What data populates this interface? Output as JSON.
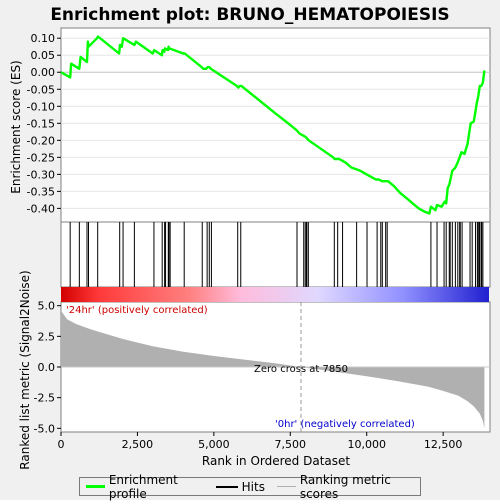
{
  "chart_data": {
    "type": "line",
    "title": "Enrichment plot: BRUNO_HEMATOPOIESIS",
    "top_panel": {
      "ylabel": "Enrichment score (ES)",
      "ylim": [
        -0.44,
        0.13
      ],
      "yticks": [
        0.1,
        0.05,
        0.0,
        -0.05,
        -0.1,
        -0.15,
        -0.2,
        -0.25,
        -0.3,
        -0.35,
        -0.4
      ],
      "ytick_labels": [
        "0.10",
        "0.05",
        "0.00",
        "-0.05",
        "-0.10",
        "-0.15",
        "-0.20",
        "-0.25",
        "-0.30",
        "-0.35",
        "-0.40"
      ],
      "series": [
        {
          "name": "Enrichment profile",
          "color": "#00ff00",
          "x": [
            0,
            300,
            330,
            600,
            640,
            850,
            880,
            900,
            1180,
            1210,
            1900,
            1930,
            1990,
            2030,
            2400,
            2450,
            3000,
            3050,
            3300,
            3320,
            3380,
            3400,
            3500,
            3520,
            3540,
            4000,
            4050,
            4600,
            4650,
            4750,
            4800,
            4850,
            4900,
            5750,
            5800,
            5850,
            5900,
            7000,
            7500,
            7700,
            7800,
            7900,
            8000,
            8050,
            8100,
            8500,
            8900,
            8950,
            9050,
            9100,
            9200,
            9300,
            9500,
            9800,
            10000,
            10200,
            10300,
            10400,
            10500,
            10600,
            10700,
            10900,
            11100,
            11300,
            11500,
            11700,
            11900,
            12050,
            12100,
            12250,
            12300,
            12450,
            12550,
            12600,
            12650,
            12700,
            12750,
            12800,
            12900,
            13000,
            13100,
            13200,
            13300,
            13350,
            13400,
            13500,
            13550,
            13600,
            13650,
            13700,
            13750,
            13800,
            13850
          ],
          "y": [
            0.0,
            -0.015,
            0.025,
            0.01,
            0.045,
            0.03,
            0.09,
            0.075,
            0.1,
            0.105,
            0.055,
            0.08,
            0.075,
            0.1,
            0.08,
            0.09,
            0.055,
            0.065,
            0.05,
            0.065,
            0.06,
            0.07,
            0.065,
            0.075,
            0.07,
            0.055,
            0.055,
            0.015,
            0.01,
            0.01,
            0.015,
            0.015,
            0.01,
            -0.04,
            -0.045,
            -0.04,
            -0.04,
            -0.12,
            -0.155,
            -0.17,
            -0.18,
            -0.185,
            -0.19,
            -0.195,
            -0.2,
            -0.225,
            -0.25,
            -0.255,
            -0.255,
            -0.255,
            -0.26,
            -0.265,
            -0.28,
            -0.29,
            -0.3,
            -0.31,
            -0.315,
            -0.315,
            -0.32,
            -0.32,
            -0.32,
            -0.335,
            -0.355,
            -0.37,
            -0.385,
            -0.4,
            -0.41,
            -0.415,
            -0.395,
            -0.405,
            -0.39,
            -0.395,
            -0.38,
            -0.385,
            -0.34,
            -0.33,
            -0.31,
            -0.29,
            -0.28,
            -0.26,
            -0.235,
            -0.24,
            -0.21,
            -0.18,
            -0.15,
            -0.145,
            -0.12,
            -0.09,
            -0.07,
            -0.04,
            -0.04,
            -0.03,
            0.005
          ]
        }
      ]
    },
    "hits_panel": {
      "name": "Hits",
      "color": "#000000",
      "positions": [
        300,
        600,
        850,
        900,
        1200,
        1920,
        2030,
        2400,
        3040,
        3310,
        3390,
        3420,
        3510,
        3530,
        3570,
        4030,
        4620,
        4780,
        4850,
        4920,
        5780,
        5880,
        7720,
        7940,
        7990,
        8030,
        8080,
        8090,
        8940,
        9050,
        9210,
        9670,
        10010,
        10340,
        10460,
        10510,
        10620,
        10670,
        12100,
        12300,
        12530,
        12600,
        12700,
        12730,
        12800,
        12900,
        12980,
        13040,
        13060,
        13120,
        13380,
        13450,
        13560,
        13620,
        13650,
        13690,
        13740,
        13760,
        13800
      ]
    },
    "color_bar": {
      "stops": [
        "#d40000",
        "#ff3a3a",
        "#ff8080",
        "#ffbcdc",
        "#e0d8ff",
        "#9090ff",
        "#2020d0"
      ],
      "label_pos": "'24hr' (positively correlated)",
      "label_neg": "'0hr' (negatively correlated)",
      "label_pos_color": "#cc0000",
      "label_neg_color": "#0000cc"
    },
    "bottom_panel": {
      "name": "Ranking metric scores",
      "color": "#b0b0b0",
      "ylabel": "Ranked list metric (Signal2Noise)",
      "ylim": [
        -5.3,
        5.3
      ],
      "yticks": [
        5.0,
        2.5,
        0.0,
        -2.5,
        -5.0
      ],
      "ytick_labels": [
        "5.0",
        "2.5",
        "0.0",
        "-2.5",
        "-5.0"
      ],
      "zero_cross_label": "Zero cross at 7850",
      "zero_cross": 7850,
      "metric_x": [
        0,
        200,
        500,
        1000,
        2000,
        3000,
        4000,
        5000,
        6000,
        7000,
        7850,
        9000,
        10000,
        11000,
        12000,
        12500,
        13000,
        13300,
        13500,
        13700,
        13800,
        13850
      ],
      "metric_y": [
        4.6,
        3.9,
        3.5,
        3.05,
        2.3,
        1.7,
        1.25,
        0.9,
        0.6,
        0.3,
        0.0,
        -0.4,
        -0.75,
        -1.15,
        -1.6,
        -1.95,
        -2.35,
        -2.8,
        -3.2,
        -3.8,
        -4.4,
        -5.0
      ]
    },
    "xlabel": "Rank in Ordered Dataset",
    "xlim": [
      0,
      14000
    ],
    "xticks": [
      0,
      2500,
      5000,
      7500,
      10000,
      12500
    ],
    "xtick_labels": [
      "0",
      "2,500",
      "5,000",
      "7,500",
      "10,000",
      "12,500"
    ],
    "legend": [
      {
        "label": "Enrichment profile",
        "color": "#00ff00"
      },
      {
        "label": "Hits",
        "color": "#000000"
      },
      {
        "label": "Ranking metric scores",
        "color": "#b0b0b0"
      }
    ]
  }
}
